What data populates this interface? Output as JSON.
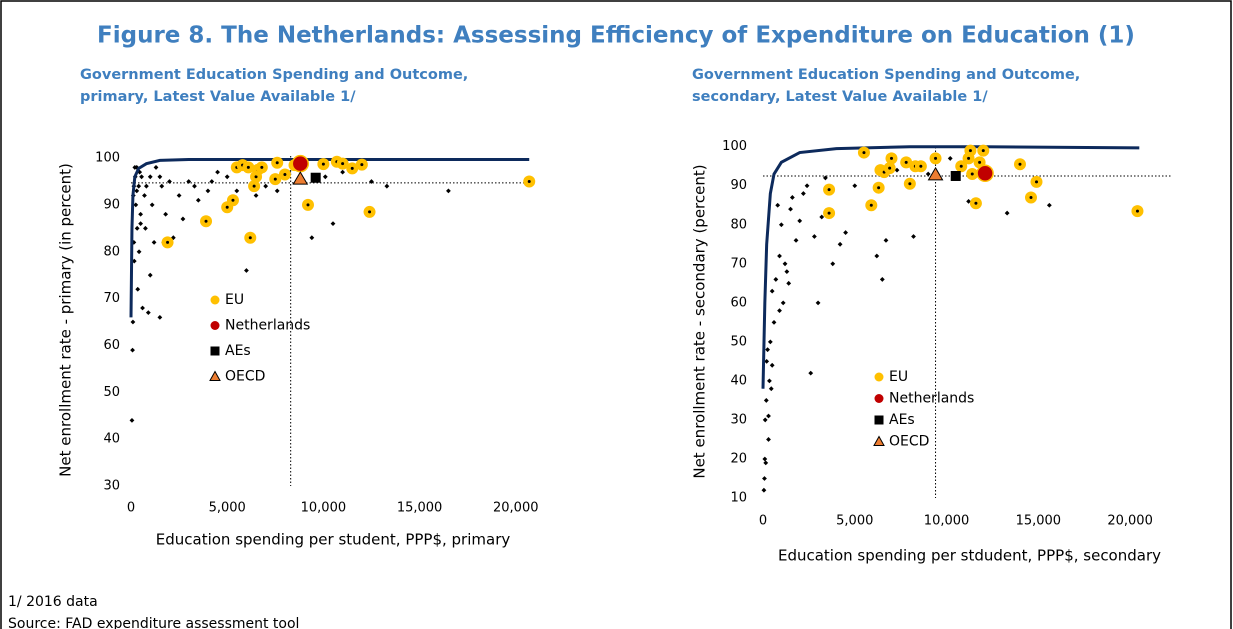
{
  "title": "Figure 8. The Netherlands: Assessing Efficiency of Expenditure on Education (1)",
  "notes": [
    "1/ 2016 data",
    "Source: FAD expenditure assessment tool"
  ],
  "chart_data": [
    {
      "type": "scatter",
      "title_lines": [
        "Government Education Spending and Outcome,",
        "primary, Latest Value Available 1/"
      ],
      "x_label": "Education spending per student, PPP$, primary",
      "y_label": "Net enrollment rate - primary (in percent)",
      "xlim": [
        0,
        21000
      ],
      "ylim": [
        30,
        103
      ],
      "xticks": [
        0,
        {
          "value": 5000,
          "label": "5,000"
        },
        {
          "value": 10000,
          "label": "10,000"
        },
        {
          "value": 15000,
          "label": "15,000"
        },
        {
          "value": 20000,
          "label": "20,000"
        }
      ],
      "yticks": [
        30,
        40,
        50,
        60,
        70,
        80,
        90,
        100
      ],
      "reference_lines": {
        "x": 8300,
        "y": 94.7
      },
      "series": [
        {
          "marker": "diamond",
          "color": "#000000",
          "x": [
            50,
            80,
            100,
            120,
            150,
            170,
            200,
            220,
            250,
            300,
            320,
            350,
            400,
            420,
            450,
            500,
            550,
            600,
            700,
            750,
            800,
            900,
            1000,
            1100,
            1200,
            1300,
            1500,
            1600,
            1700,
            1800,
            2000,
            2200,
            2500,
            2700,
            3000,
            3300,
            3500,
            4000,
            4200,
            4500,
            5000,
            5500,
            6000,
            6300,
            6500,
            7000,
            7600,
            8200,
            9400,
            10100,
            10500,
            11000,
            12500,
            13300,
            16500,
            150,
            300,
            500,
            1500,
            1000
          ],
          "values": [
            44,
            59,
            65,
            92,
            94,
            78,
            98,
            96,
            90,
            93,
            85,
            72,
            94,
            80,
            97,
            88,
            96,
            68,
            92,
            85,
            94,
            67,
            96,
            90,
            82,
            98,
            66,
            94,
            82,
            88,
            95,
            83,
            92,
            87,
            95,
            94,
            91,
            93,
            95,
            97,
            96,
            93,
            76,
            94,
            92,
            94,
            93,
            97,
            83,
            96,
            86,
            97,
            95,
            94,
            93,
            82,
            98,
            86,
            96,
            75
          ]
        },
        {
          "marker": "line",
          "color": "#0d2a5c",
          "x": [
            0,
            50,
            100,
            200,
            400,
            800,
            1500,
            3000,
            20700
          ],
          "values": [
            66,
            85,
            92,
            96,
            97.8,
            98.8,
            99.5,
            99.7,
            99.7
          ]
        },
        {
          "name": "EU",
          "marker": "circle",
          "color": "#ffc000",
          "x": [
            1900,
            3900,
            5000,
            5300,
            5500,
            5800,
            6100,
            6200,
            6400,
            6500,
            6600,
            6800,
            7500,
            7600,
            8000,
            8500,
            9200,
            10000,
            10700,
            11000,
            11500,
            12000,
            12400,
            20700
          ],
          "values": [
            82,
            86.5,
            89.5,
            91,
            98,
            98.5,
            98,
            83,
            94,
            96,
            97.5,
            98,
            95.5,
            99,
            96.5,
            98.5,
            90,
            98.7,
            99.2,
            98.8,
            97.8,
            98.6,
            88.5,
            95
          ]
        },
        {
          "name": "Netherlands",
          "marker": "big-circle",
          "color": "#c00000",
          "x": [
            8800
          ],
          "values": [
            98.8
          ]
        },
        {
          "name": "AEs",
          "marker": "square",
          "color": "#000000",
          "x": [
            9600
          ],
          "values": [
            95.8
          ]
        },
        {
          "name": "OECD",
          "marker": "triangle",
          "color": "#ed7d31",
          "x": [
            8800
          ],
          "values": [
            95.5
          ]
        }
      ]
    },
    {
      "type": "scatter",
      "title_lines": [
        "Government Education Spending and Outcome,",
        "secondary, Latest Value Available 1/"
      ],
      "x_label": "Education spending per stdudent, PPP$, secondary",
      "y_label": "Net enrollment rate - secondary (percent)",
      "xlim": [
        0,
        22500
      ],
      "ylim": [
        10,
        103
      ],
      "xticks": [
        0,
        {
          "value": 5000,
          "label": "5,000"
        },
        {
          "value": 10000,
          "label": "10,000"
        },
        {
          "value": 15000,
          "label": "15,000"
        },
        {
          "value": 20000,
          "label": "20,000"
        }
      ],
      "yticks": [
        10,
        20,
        30,
        40,
        50,
        60,
        70,
        80,
        90,
        100
      ],
      "reference_lines": {
        "x": 9400,
        "y": 92.5
      },
      "series": [
        {
          "marker": "diamond",
          "color": "#000000",
          "x": [
            50,
            80,
            100,
            120,
            150,
            180,
            200,
            250,
            300,
            350,
            400,
            450,
            500,
            600,
            700,
            800,
            900,
            1000,
            1100,
            1200,
            1400,
            1500,
            1600,
            1800,
            2000,
            2200,
            2400,
            2600,
            2800,
            3000,
            3200,
            3400,
            3800,
            4200,
            4500,
            5000,
            6200,
            6500,
            6700,
            7300,
            8200,
            9000,
            10200,
            11200,
            13300,
            15600,
            300,
            500,
            900,
            1300
          ],
          "values": [
            12,
            15,
            20,
            30,
            19,
            35,
            45,
            48,
            31,
            40,
            50,
            38,
            63,
            55,
            66,
            85,
            72,
            80,
            60,
            70,
            65,
            84,
            87,
            76,
            81,
            88,
            90,
            42,
            77,
            60,
            82,
            92,
            70,
            75,
            78,
            90,
            72,
            66,
            76,
            94,
            77,
            93,
            97,
            86,
            83,
            85,
            25,
            44,
            58,
            68
          ]
        },
        {
          "marker": "line",
          "color": "#0d2a5c",
          "x": [
            0,
            100,
            200,
            400,
            600,
            1000,
            2000,
            4000,
            8000,
            12000,
            20500
          ],
          "values": [
            38,
            60,
            75,
            88,
            93,
            96,
            98.5,
            99.5,
            100,
            100,
            99.7
          ]
        },
        {
          "name": "EU",
          "marker": "circle",
          "color": "#ffc000",
          "x": [
            3600,
            3600,
            5500,
            5900,
            6300,
            6400,
            6600,
            6900,
            7000,
            7800,
            8000,
            8300,
            8600,
            9400,
            10800,
            11200,
            11300,
            11400,
            11600,
            11800,
            12000,
            14000,
            14600,
            14900,
            20400
          ],
          "values": [
            89,
            83,
            98.5,
            85,
            89.5,
            94,
            93.5,
            94.5,
            97,
            96,
            90.5,
            95,
            95,
            97,
            95,
            97,
            99,
            93,
            85.5,
            96,
            99,
            95.5,
            87,
            91,
            83.5
          ]
        },
        {
          "name": "Netherlands",
          "marker": "big-circle",
          "color": "#c00000",
          "x": [
            12100
          ],
          "values": [
            93.2
          ]
        },
        {
          "name": "AEs",
          "marker": "square",
          "color": "#000000",
          "x": [
            10500
          ],
          "values": [
            92.5
          ]
        },
        {
          "name": "OECD",
          "marker": "triangle",
          "color": "#ed7d31",
          "x": [
            9400
          ],
          "values": [
            92.8
          ]
        }
      ]
    }
  ]
}
